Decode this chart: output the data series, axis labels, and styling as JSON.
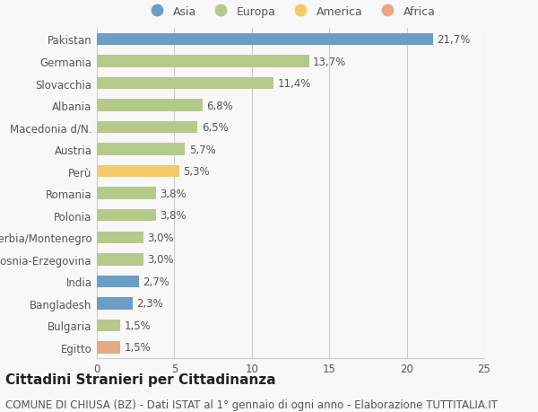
{
  "categories": [
    "Egitto",
    "Bulgaria",
    "Bangladesh",
    "India",
    "Bosnia-Erzegovina",
    "Serbia/Montenegro",
    "Polonia",
    "Romania",
    "Perù",
    "Austria",
    "Macedonia d/N.",
    "Albania",
    "Slovacchia",
    "Germania",
    "Pakistan"
  ],
  "values": [
    1.5,
    1.5,
    2.3,
    2.7,
    3.0,
    3.0,
    3.8,
    3.8,
    5.3,
    5.7,
    6.5,
    6.8,
    11.4,
    13.7,
    21.7
  ],
  "labels": [
    "1,5%",
    "1,5%",
    "2,3%",
    "2,7%",
    "3,0%",
    "3,0%",
    "3,8%",
    "3,8%",
    "5,3%",
    "5,7%",
    "6,5%",
    "6,8%",
    "11,4%",
    "13,7%",
    "21,7%"
  ],
  "colors": [
    "#e8a882",
    "#b5c98a",
    "#6b9ec4",
    "#6b9ec4",
    "#b5c98a",
    "#b5c98a",
    "#b5c98a",
    "#b5c98a",
    "#f5c96a",
    "#b5c98a",
    "#b5c98a",
    "#b5c98a",
    "#b5c98a",
    "#b5c98a",
    "#6b9ec4"
  ],
  "legend_names": [
    "Asia",
    "Europa",
    "America",
    "Africa"
  ],
  "legend_colors": [
    "#6b9ec4",
    "#b5c98a",
    "#f5c96a",
    "#e8a882"
  ],
  "title": "Cittadini Stranieri per Cittadinanza",
  "subtitle": "COMUNE DI CHIUSA (BZ) - Dati ISTAT al 1° gennaio di ogni anno - Elaborazione TUTTITALIA.IT",
  "xlim": [
    0,
    25
  ],
  "xticks": [
    0,
    5,
    10,
    15,
    20,
    25
  ],
  "background_color": "#f8f8f8",
  "grid_color": "#cccccc",
  "text_color": "#555555",
  "title_fontsize": 11,
  "subtitle_fontsize": 8.5,
  "label_fontsize": 8.5,
  "tick_fontsize": 8.5,
  "legend_fontsize": 9,
  "bar_height": 0.55
}
